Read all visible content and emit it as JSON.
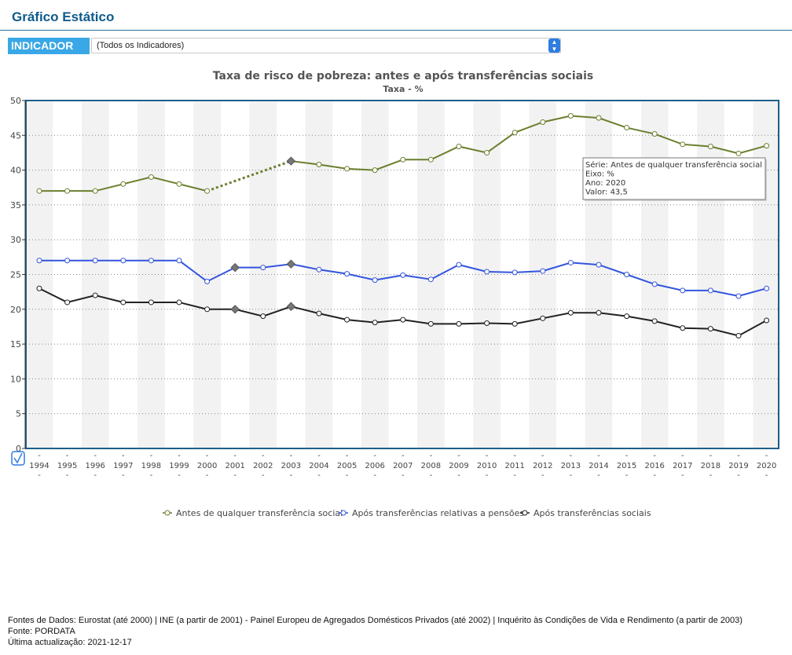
{
  "page": {
    "title": "Gráfico Estático"
  },
  "indicator": {
    "label": "INDICADOR",
    "value": "(Todos os Indicadores)"
  },
  "icons": {
    "select_arrow": "chevron-up-down-icon",
    "check": "checkmark-icon"
  },
  "tooltip": {
    "lines": [
      "Série: Antes de qualquer transferência social",
      "Eixo: %",
      "Ano: 2020",
      "Valor: 43,5"
    ],
    "series_index": 0,
    "year": 2020
  },
  "chart_data": {
    "type": "line",
    "title": "Taxa de risco de pobreza: antes e após transferências sociais",
    "subtitle": "Taxa - %",
    "x": [
      1994,
      1995,
      1996,
      1997,
      1998,
      1999,
      2000,
      2001,
      2002,
      2003,
      2004,
      2005,
      2006,
      2007,
      2008,
      2009,
      2010,
      2011,
      2012,
      2013,
      2014,
      2015,
      2016,
      2017,
      2018,
      2019,
      2020
    ],
    "x_tick_labels": [
      "1994",
      "1995",
      "1996",
      "1997",
      "1998",
      "1999",
      "2000",
      "2001",
      "2002",
      "2003",
      "2004",
      "2005",
      "2006",
      "2007",
      "2008",
      "2009",
      "2010",
      "2011",
      "2012",
      "2013",
      "2014",
      "2015",
      "2016",
      "2017",
      "2018",
      "2019",
      "2020"
    ],
    "ylim": [
      0,
      50
    ],
    "y_ticks": [
      0,
      5,
      10,
      15,
      20,
      25,
      30,
      35,
      40,
      45,
      50
    ],
    "y_tick_labels": [
      "0",
      "5",
      "10",
      "15",
      "20",
      "25",
      "30",
      "35",
      "40",
      "45",
      "50"
    ],
    "grid": "horizontal-dotted",
    "legend_position": "bottom",
    "series": [
      {
        "name": "Antes de qualquer transferência social",
        "color": "#6b7f2e",
        "values": [
          37,
          37,
          37,
          38,
          39,
          38,
          37,
          null,
          null,
          41.3,
          40.8,
          40.2,
          40,
          41.5,
          41.5,
          43.4,
          42.5,
          45.4,
          46.9,
          47.8,
          47.5,
          46.1,
          45.2,
          43.7,
          43.4,
          42.4,
          43.5
        ],
        "break_markers": [
          9
        ],
        "dashed_gap": [
          6,
          9
        ]
      },
      {
        "name": "Após transferências relativas a pensões",
        "color": "#3355dd",
        "values": [
          27,
          27,
          27,
          27,
          27,
          27,
          24,
          26,
          26,
          26.5,
          25.7,
          25.1,
          24.2,
          24.9,
          24.3,
          26.4,
          25.4,
          25.3,
          25.5,
          26.7,
          26.4,
          25,
          23.6,
          22.7,
          22.7,
          21.9,
          23
        ],
        "break_markers": [
          7,
          9
        ]
      },
      {
        "name": "Após transferências sociais",
        "color": "#222222",
        "values": [
          23,
          21,
          22,
          21,
          21,
          21,
          20,
          20,
          19,
          20.4,
          19.4,
          18.5,
          18.1,
          18.5,
          17.9,
          17.9,
          18,
          17.9,
          18.7,
          19.5,
          19.5,
          19,
          18.3,
          17.3,
          17.2,
          16.2,
          18.4
        ],
        "break_markers": [
          7,
          9
        ]
      }
    ]
  },
  "sources": {
    "line1": "Fontes de Dados: Eurostat (até 2000) | INE (a partir de 2001) - Painel Europeu de Agregados Domésticos Privados (até 2002) | Inquérito às Condições de Vida e Rendimento (a partir de 2003)",
    "line2": "Fonte: PORDATA",
    "line3": "Última actualização: 2021-12-17"
  }
}
